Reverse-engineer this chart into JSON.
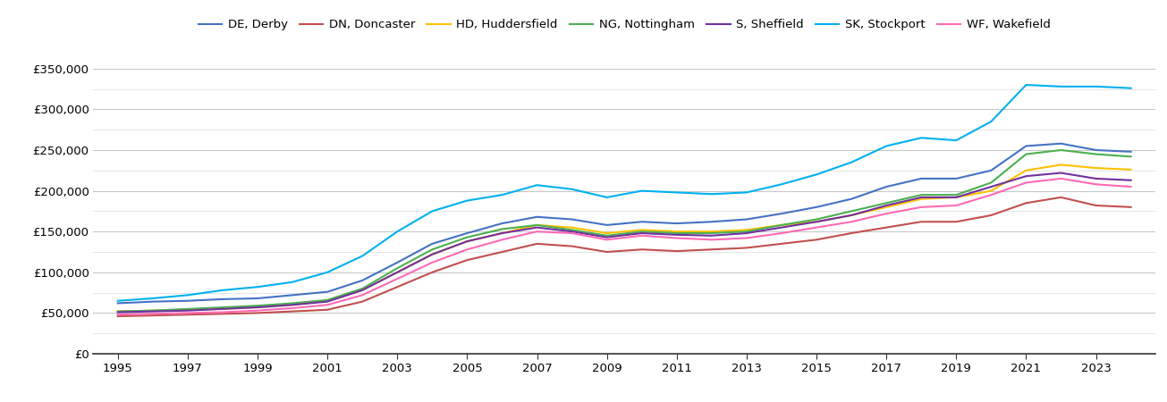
{
  "years": [
    1995,
    1996,
    1997,
    1998,
    1999,
    2000,
    2001,
    2002,
    2003,
    2004,
    2005,
    2006,
    2007,
    2008,
    2009,
    2010,
    2011,
    2012,
    2013,
    2014,
    2015,
    2016,
    2017,
    2018,
    2019,
    2020,
    2021,
    2022,
    2023,
    2024
  ],
  "series": {
    "DE, Derby": {
      "color": "#4472C4",
      "values": [
        62000,
        64000,
        65000,
        67000,
        68000,
        72000,
        76000,
        90000,
        112000,
        135000,
        148000,
        160000,
        168000,
        165000,
        158000,
        162000,
        160000,
        162000,
        165000,
        172000,
        180000,
        190000,
        205000,
        215000,
        215000,
        225000,
        255000,
        258000,
        250000,
        248000
      ]
    },
    "DN, Doncaster": {
      "color": "#C0504D",
      "values": [
        46000,
        47000,
        48000,
        49000,
        50000,
        52000,
        54000,
        64000,
        82000,
        100000,
        115000,
        125000,
        135000,
        132000,
        125000,
        128000,
        126000,
        128000,
        130000,
        135000,
        140000,
        148000,
        155000,
        162000,
        162000,
        170000,
        185000,
        192000,
        182000,
        180000
      ]
    },
    "HD, Huddersfield": {
      "color": "#FFC000",
      "values": [
        52000,
        53000,
        54000,
        55000,
        57000,
        60000,
        65000,
        78000,
        100000,
        122000,
        138000,
        148000,
        158000,
        155000,
        148000,
        152000,
        150000,
        150000,
        152000,
        158000,
        162000,
        170000,
        180000,
        190000,
        192000,
        200000,
        225000,
        232000,
        228000,
        226000
      ]
    },
    "NG, Nottingham": {
      "color": "#4CAF50",
      "values": [
        52000,
        53000,
        55000,
        57000,
        59000,
        62000,
        66000,
        80000,
        105000,
        128000,
        143000,
        153000,
        158000,
        152000,
        145000,
        150000,
        148000,
        148000,
        150000,
        158000,
        165000,
        175000,
        185000,
        195000,
        195000,
        210000,
        245000,
        250000,
        245000,
        242000
      ]
    },
    "S, Sheffield": {
      "color": "#7030A0",
      "values": [
        51000,
        52000,
        53000,
        55000,
        57000,
        60000,
        64000,
        78000,
        100000,
        122000,
        138000,
        148000,
        155000,
        150000,
        143000,
        148000,
        146000,
        145000,
        148000,
        155000,
        162000,
        170000,
        182000,
        192000,
        192000,
        205000,
        218000,
        222000,
        215000,
        213000
      ]
    },
    "SK, Stockport": {
      "color": "#00B0F0",
      "values": [
        65000,
        68000,
        72000,
        78000,
        82000,
        88000,
        100000,
        120000,
        150000,
        175000,
        188000,
        195000,
        207000,
        202000,
        192000,
        200000,
        198000,
        196000,
        198000,
        208000,
        220000,
        235000,
        255000,
        265000,
        262000,
        285000,
        330000,
        328000,
        328000,
        326000
      ]
    },
    "WF, Wakefield": {
      "color": "#FF69B4",
      "values": [
        48000,
        49000,
        50000,
        51000,
        53000,
        56000,
        60000,
        72000,
        92000,
        112000,
        128000,
        140000,
        150000,
        148000,
        140000,
        145000,
        142000,
        140000,
        142000,
        148000,
        155000,
        162000,
        172000,
        180000,
        182000,
        195000,
        210000,
        215000,
        208000,
        205000
      ]
    }
  },
  "ylim": [
    0,
    375000
  ],
  "yticks_major": [
    0,
    50000,
    100000,
    150000,
    200000,
    250000,
    300000,
    350000
  ],
  "yticks_minor": [
    25000,
    75000,
    125000,
    175000,
    225000,
    275000,
    325000
  ],
  "xticks": [
    1995,
    1997,
    1999,
    2001,
    2003,
    2005,
    2007,
    2009,
    2011,
    2013,
    2015,
    2017,
    2019,
    2021,
    2023
  ],
  "xlim": [
    1994.3,
    2024.7
  ],
  "background_color": "#ffffff",
  "major_grid_color": "#c8c8c8",
  "minor_grid_color": "#e0e0e0",
  "legend_labels": [
    "DE, Derby",
    "DN, Doncaster",
    "HD, Huddersfield",
    "NG, Nottingham",
    "S, Sheffield",
    "SK, Stockport",
    "WF, Wakefield"
  ]
}
